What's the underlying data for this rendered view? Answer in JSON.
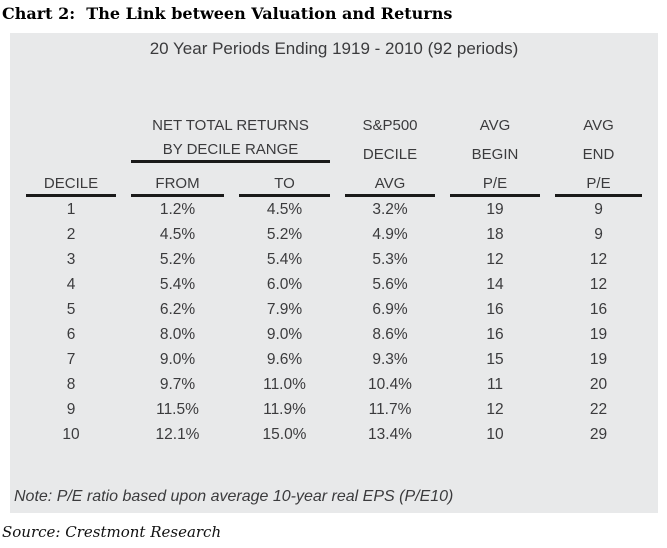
{
  "title": "Chart 2:  The Link between Valuation and Returns",
  "panel": {
    "subtitle": "20 Year Periods Ending 1919 - 2010 (92 periods)",
    "note": "Note: P/E ratio based upon average 10-year real EPS (P/E10)"
  },
  "source": "Source: Crestmont Research",
  "colors": {
    "panel_bg": "#e8e9ea",
    "text": "#3b3b3d",
    "rule": "#1a1a1a"
  },
  "table": {
    "header": {
      "returns_group": [
        "NET TOTAL RETURNS",
        "BY DECILE RANGE"
      ],
      "sp500": [
        "S&P500",
        "DECILE"
      ],
      "begin": [
        "AVG",
        "BEGIN"
      ],
      "end": [
        "AVG",
        "END"
      ],
      "sub": [
        "DECILE",
        "FROM",
        "TO",
        "AVG",
        "P/E",
        "P/E"
      ]
    },
    "rows": [
      [
        "1",
        "1.2%",
        "4.5%",
        "3.2%",
        "19",
        "9"
      ],
      [
        "2",
        "4.5%",
        "5.2%",
        "4.9%",
        "18",
        "9"
      ],
      [
        "3",
        "5.2%",
        "5.4%",
        "5.3%",
        "12",
        "12"
      ],
      [
        "4",
        "5.4%",
        "6.0%",
        "5.6%",
        "14",
        "12"
      ],
      [
        "5",
        "6.2%",
        "7.9%",
        "6.9%",
        "16",
        "16"
      ],
      [
        "6",
        "8.0%",
        "9.0%",
        "8.6%",
        "16",
        "19"
      ],
      [
        "7",
        "9.0%",
        "9.6%",
        "9.3%",
        "15",
        "19"
      ],
      [
        "8",
        "9.7%",
        "11.0%",
        "10.4%",
        "11",
        "20"
      ],
      [
        "9",
        "11.5%",
        "11.9%",
        "11.7%",
        "12",
        "22"
      ],
      [
        "10",
        "12.1%",
        "15.0%",
        "13.4%",
        "10",
        "29"
      ]
    ]
  },
  "chart_data": {
    "type": "table",
    "title": "Chart 2: The Link between Valuation and Returns",
    "subtitle": "20 Year Periods Ending 1919 - 2010 (92 periods)",
    "columns": [
      "DECILE",
      "NET TOTAL RETURNS BY DECILE RANGE: FROM",
      "NET TOTAL RETURNS BY DECILE RANGE: TO",
      "S&P500 DECILE AVG",
      "AVG BEGIN P/E",
      "AVG END P/E"
    ],
    "rows": [
      [
        1,
        "1.2%",
        "4.5%",
        "3.2%",
        19,
        9
      ],
      [
        2,
        "4.5%",
        "5.2%",
        "4.9%",
        18,
        9
      ],
      [
        3,
        "5.2%",
        "5.4%",
        "5.3%",
        12,
        12
      ],
      [
        4,
        "5.4%",
        "6.0%",
        "5.6%",
        14,
        12
      ],
      [
        5,
        "6.2%",
        "7.9%",
        "6.9%",
        16,
        16
      ],
      [
        6,
        "8.0%",
        "9.0%",
        "8.6%",
        16,
        19
      ],
      [
        7,
        "9.0%",
        "9.6%",
        "9.3%",
        15,
        19
      ],
      [
        8,
        "9.7%",
        "11.0%",
        "10.4%",
        11,
        20
      ],
      [
        9,
        "11.5%",
        "11.9%",
        "11.7%",
        12,
        22
      ],
      [
        10,
        "12.1%",
        "15.0%",
        "13.4%",
        10,
        29
      ]
    ],
    "note": "Note: P/E ratio based upon average 10-year real EPS (P/E10)",
    "source": "Source: Crestmont Research"
  }
}
